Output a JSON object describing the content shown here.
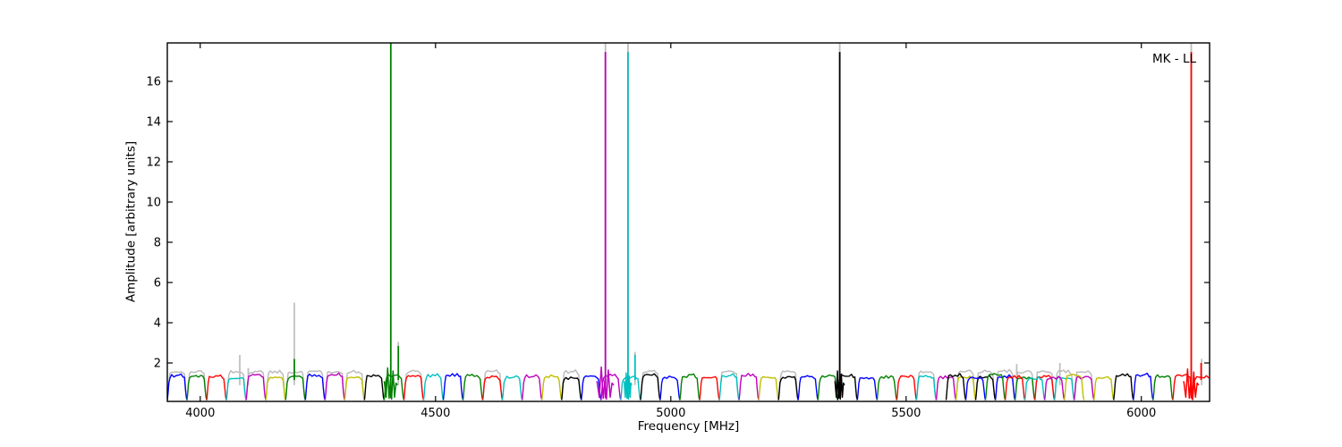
{
  "chart_data": {
    "type": "line",
    "title": "",
    "annotation": "MK - LL",
    "xlabel": "Frequency [MHz]",
    "ylabel": "Amplitude [arbitrary units]",
    "xlim": [
      3930,
      6145
    ],
    "ylim": [
      0.09,
      17.91
    ],
    "xticks": [
      4000,
      4500,
      5000,
      5500,
      6000
    ],
    "yticks": [
      2,
      4,
      6,
      8,
      10,
      12,
      14,
      16
    ],
    "grid": false,
    "legend": "none",
    "background": "#ffffff",
    "frame_color": "#000000",
    "palette": {
      "b": "#0000ff",
      "g": "#008000",
      "r": "#ff0000",
      "c": "#00bfbf",
      "m": "#bf00bf",
      "y": "#bfbf00",
      "k": "#000000",
      "gray": "#bdbdbd"
    },
    "baseline_segments": {
      "f_start": 3930,
      "width_mhz": 41.9,
      "count": 53,
      "typical_amplitude": 1.3,
      "colors": [
        "b",
        "g",
        "r",
        "c",
        "m",
        "y",
        "g",
        "b",
        "m",
        "y",
        "k",
        "g",
        "r",
        "c",
        "b",
        "g",
        "r",
        "c",
        "m",
        "y",
        "k",
        "b",
        "m",
        "c",
        "k",
        "b",
        "g",
        "r",
        "c",
        "m",
        "y",
        "k",
        "b",
        "g",
        "k",
        "b",
        "g",
        "r",
        "c",
        "m",
        "y",
        "k",
        "b",
        "g",
        "r",
        "c",
        "m",
        "y",
        "k",
        "b",
        "g",
        "r",
        "r"
      ]
    },
    "overlay_segments": {
      "f_start": 5585,
      "width_mhz": 41.9,
      "count": 7,
      "typical_amplitude": 1.25,
      "colors": [
        "k",
        "b",
        "g",
        "r",
        "c",
        "m",
        "y"
      ]
    },
    "gray_cap_segment_indices": [
      0,
      1,
      3,
      4,
      5,
      6,
      7,
      8,
      9,
      12,
      16,
      20,
      24,
      28,
      31,
      38,
      40,
      41,
      42,
      43,
      44,
      45,
      46
    ],
    "major_spikes": [
      {
        "freq": 4405,
        "peak": 17.91,
        "color": "g",
        "gray_tip": false
      },
      {
        "freq": 4861,
        "peak": 17.91,
        "color": "m",
        "gray_tip": true
      },
      {
        "freq": 4909,
        "peak": 17.91,
        "color": "c",
        "gray_tip": true
      },
      {
        "freq": 5359,
        "peak": 17.91,
        "color": "k",
        "gray_tip": true
      },
      {
        "freq": 6106,
        "peak": 17.91,
        "color": "r",
        "gray_tip": true
      }
    ],
    "minor_spikes": [
      {
        "freq": 4200,
        "peak": 2.2,
        "color": "g"
      },
      {
        "freq": 4421,
        "peak": 2.85,
        "color": "g"
      },
      {
        "freq": 4924,
        "peak": 2.4,
        "color": "c"
      },
      {
        "freq": 6127,
        "peak": 2.0,
        "color": "r"
      }
    ],
    "gray_spikes": [
      {
        "freq": 4084,
        "peak": 2.4
      },
      {
        "freq": 4102,
        "peak": 1.75
      },
      {
        "freq": 4200,
        "peak": 5.0
      },
      {
        "freq": 4421,
        "peak": 3.05
      },
      {
        "freq": 4924,
        "peak": 2.55
      },
      {
        "freq": 5735,
        "peak": 1.95
      },
      {
        "freq": 5827,
        "peak": 2.0
      },
      {
        "freq": 6128,
        "peak": 2.2
      }
    ],
    "spike_base_wiggles": [
      {
        "freq": 4405,
        "color": "g",
        "halfwidth_mhz": 14,
        "peak": 1.75
      },
      {
        "freq": 4861,
        "color": "m",
        "halfwidth_mhz": 18,
        "peak": 1.8
      },
      {
        "freq": 4909,
        "color": "c",
        "halfwidth_mhz": 8,
        "peak": 1.5
      },
      {
        "freq": 5359,
        "color": "k",
        "halfwidth_mhz": 10,
        "peak": 1.6
      },
      {
        "freq": 6106,
        "color": "r",
        "halfwidth_mhz": 16,
        "peak": 1.7
      }
    ]
  }
}
